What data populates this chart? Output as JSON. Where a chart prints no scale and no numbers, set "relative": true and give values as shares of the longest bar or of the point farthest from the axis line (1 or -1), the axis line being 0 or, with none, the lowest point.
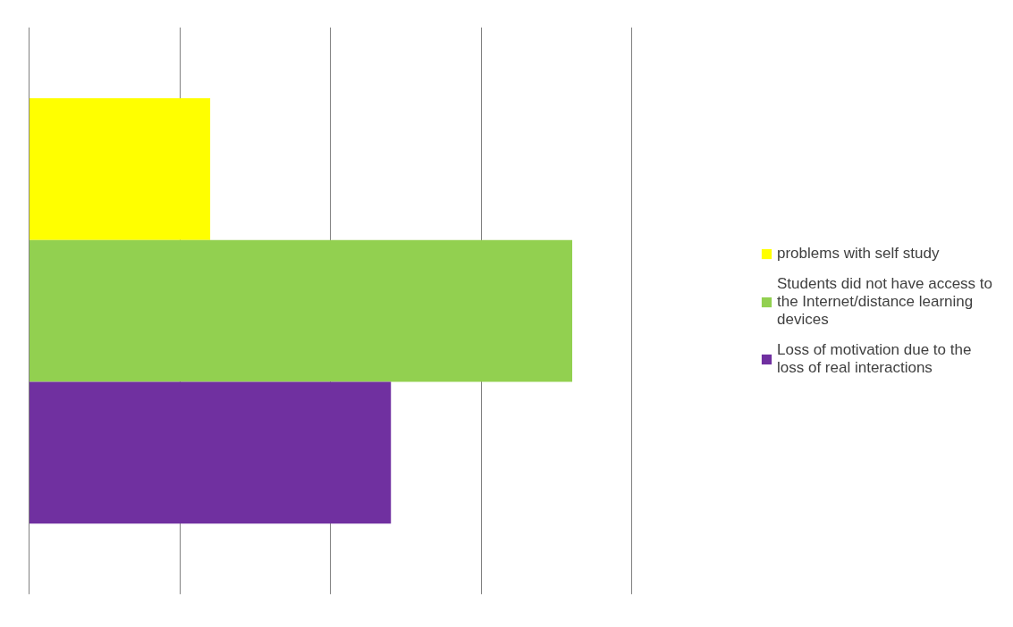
{
  "chart_data": {
    "type": "bar",
    "orientation": "horizontal",
    "relative": true,
    "categories": [
      null
    ],
    "grid": "x",
    "legend": "right",
    "series": [
      {
        "name": "problems with self study",
        "color": "#ffff00",
        "values": [
          0.333
        ]
      },
      {
        "name": "Students did not have access to the Internet/distance learning devices",
        "color": "#92d050",
        "values": [
          1
        ]
      },
      {
        "name": "Loss of motivation due to the loss of real interactions",
        "color": "#7030a0",
        "values": [
          0.666
        ]
      }
    ]
  }
}
